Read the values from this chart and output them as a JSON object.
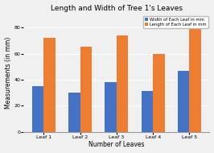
{
  "title": "Length and Width of Tree 1's Leaves",
  "xlabel": "Number of Leaves",
  "ylabel": "Measurements (in mm)",
  "categories": [
    "Leaf 1",
    "Leaf 2",
    "Leaf 3",
    "Leaf 4",
    "Leaf 5"
  ],
  "width_values": [
    35,
    30,
    38,
    31,
    47
  ],
  "length_values": [
    72,
    65,
    74,
    60,
    80
  ],
  "bar_color_width": "#4472c4",
  "bar_color_length": "#ed7d31",
  "legend_width": "Width of Each Leaf in mm",
  "legend_length": "Length of Each Leaf in mm",
  "ylim": [
    0,
    90
  ],
  "yticks": [
    0,
    20,
    40,
    60,
    80
  ],
  "background_color": "#f0f0f0",
  "plot_bg_color": "#f0f0f0",
  "grid_color": "#ffffff",
  "title_fontsize": 6.5,
  "axis_fontsize": 5.5,
  "tick_fontsize": 4.5,
  "legend_fontsize": 3.8,
  "bar_width": 0.32
}
